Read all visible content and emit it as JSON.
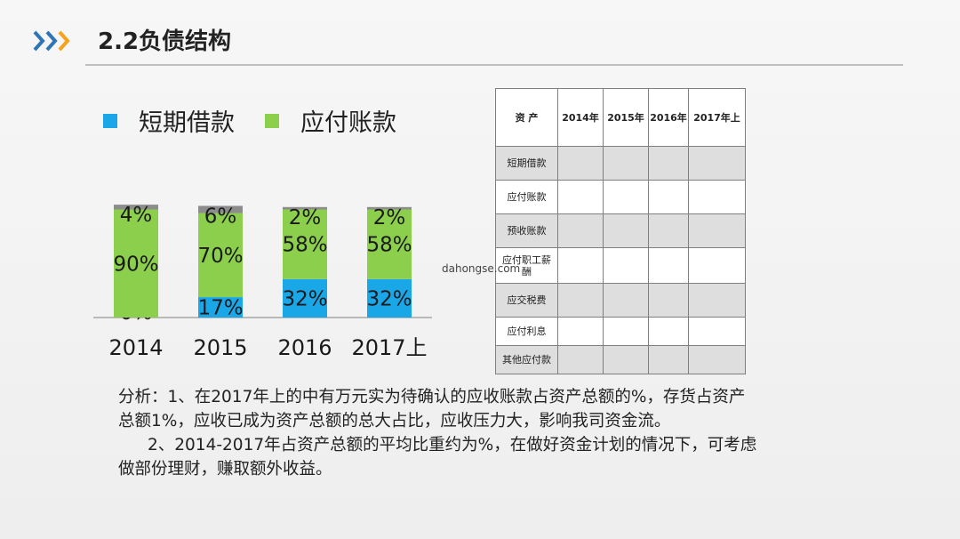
{
  "header": {
    "title": "2.2负债结构",
    "icon": "triple-chevron-right-icon"
  },
  "colors": {
    "short_term": "#1aa7e8",
    "payable": "#8ccf4d",
    "other": "#8c8c8c",
    "chevron_blue": "#2e75b6",
    "chevron_orange": "#f5a31a"
  },
  "legend": [
    {
      "label": "短期借款",
      "color": "#1aa7e8"
    },
    {
      "label": "应付账款",
      "color": "#8ccf4d"
    }
  ],
  "chart_data": {
    "type": "bar",
    "stacked": true,
    "categories": [
      "2014",
      "2015",
      "2016",
      "2017上"
    ],
    "series": [
      {
        "name": "短期借款",
        "values": [
          0,
          17,
          32,
          32
        ],
        "labels": [
          "0%",
          "17%",
          "32%",
          "32%"
        ],
        "color": "#1aa7e8"
      },
      {
        "name": "应付账款",
        "values": [
          90,
          70,
          58,
          58
        ],
        "labels": [
          "90%",
          "70%",
          "58%",
          "58%"
        ],
        "color": "#8ccf4d"
      },
      {
        "values": [
          4,
          6,
          2,
          2
        ],
        "labels": [
          "4%",
          "6%",
          "2%",
          "2%"
        ],
        "color": "#8c8c8c"
      }
    ],
    "ylim": [
      0,
      100
    ],
    "grid": false,
    "legend_position": "top"
  },
  "table": {
    "headers": [
      "资  产",
      "2014年",
      "2015年",
      "2016年",
      "2017年上"
    ],
    "rows": [
      {
        "label": "短期借款",
        "cells": [
          "",
          "",
          "",
          ""
        ]
      },
      {
        "label": "应付账款",
        "cells": [
          "",
          "",
          "",
          ""
        ]
      },
      {
        "label": "预收账款",
        "cells": [
          "",
          "",
          "",
          ""
        ]
      },
      {
        "label": "应付职工薪酬",
        "cells": [
          "",
          "",
          "",
          ""
        ]
      },
      {
        "label": "应交税费",
        "cells": [
          "",
          "",
          "",
          ""
        ]
      },
      {
        "label": "应付利息",
        "cells": [
          "",
          "",
          "",
          ""
        ]
      },
      {
        "label": "其他应付款",
        "cells": [
          "",
          "",
          "",
          ""
        ]
      }
    ]
  },
  "watermark": "dahongse.com",
  "analysis": {
    "para1": "分析：1、在2017年上的中有万元实为待确认的应收账款占资产总额的%，存货占资产总额1%，应收已成为资产总额的总大占比，应收压力大，影响我司资金流。",
    "para2": "2、2014-2017年占资产总额的平均比重约为%，在做好资金计划的情况下，可考虑做部份理财，赚取额外收益。"
  }
}
